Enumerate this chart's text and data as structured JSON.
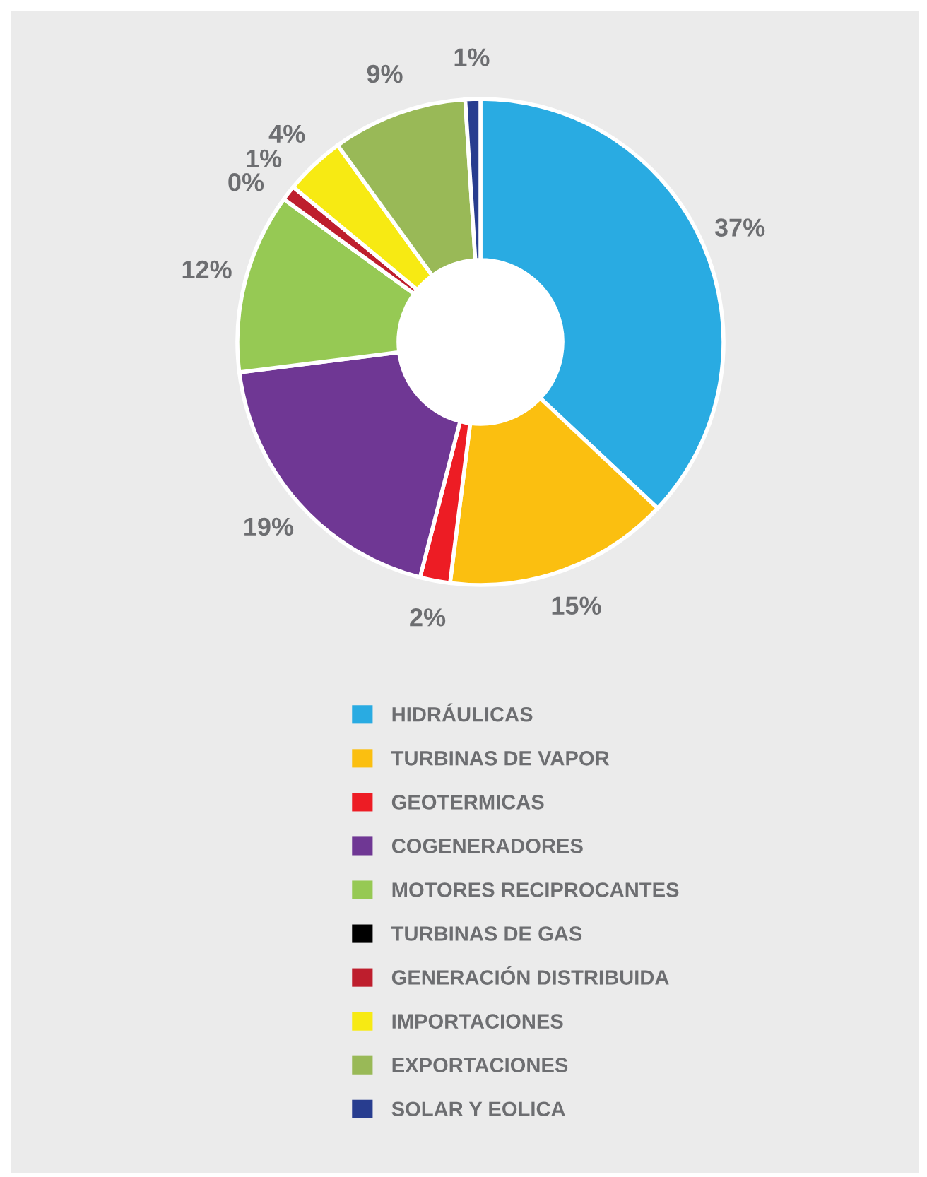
{
  "chart_data": {
    "type": "donut",
    "categories": [
      "HIDRÁULICAS",
      "TURBINAS DE VAPOR",
      "GEOTERMICAS",
      "COGENERADORES",
      "MOTORES RECIPROCANTES",
      "TURBINAS DE GAS",
      "GENERACIÓN DISTRIBUIDA",
      "IMPORTACIONES",
      "EXPORTACIONES",
      "SOLAR Y EOLICA"
    ],
    "values": [
      37,
      15,
      2,
      19,
      12,
      0,
      1,
      4,
      9,
      1
    ],
    "value_labels": [
      "37%",
      "15%",
      "2%",
      "19%",
      "12%",
      "0%",
      "1%",
      "4%",
      "9%",
      "1%"
    ],
    "colors": [
      "#29abe2",
      "#fbbf10",
      "#ed1c24",
      "#6f3794",
      "#96c954",
      "#000000",
      "#be1e2d",
      "#f7ea13",
      "#99b957",
      "#283d8f"
    ],
    "legend": "bottom"
  }
}
